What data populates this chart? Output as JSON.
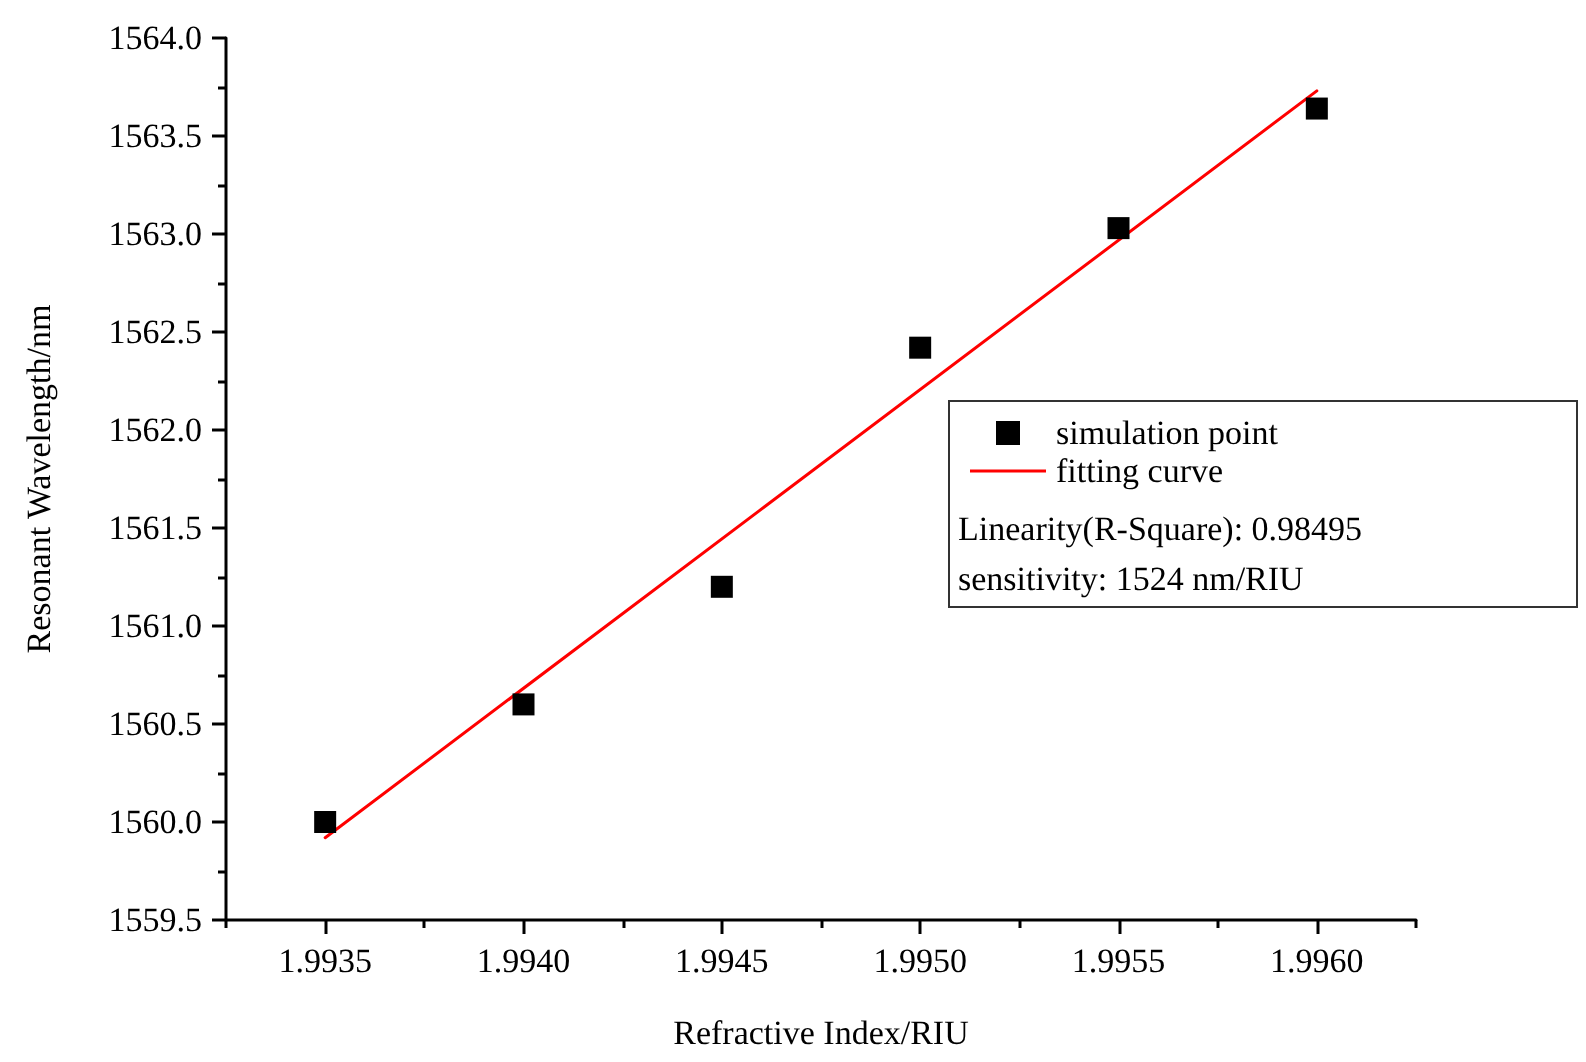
{
  "chart_data": {
    "type": "scatter",
    "xlabel": "Refractive Index/RIU",
    "ylabel": "Resonant Wavelength/nm",
    "series": [
      {
        "name": "simulation point",
        "color": "#000000",
        "marker": "square",
        "x": [
          1.9935,
          1.994,
          1.9945,
          1.995,
          1.9955,
          1.996
        ],
        "values": [
          1560.0,
          1560.6,
          1561.2,
          1562.42,
          1563.03,
          1563.64
        ]
      },
      {
        "name": "fitting curve",
        "type": "line",
        "color": "#ff0000",
        "marker": "none",
        "line_style": "solid",
        "x": [
          1.9935,
          1.996
        ],
        "values": [
          1559.92,
          1563.73
        ]
      }
    ],
    "xlim": [
      1.99325,
      1.99625
    ],
    "xticks": [
      {
        "value": 1.99325,
        "label": null
      },
      1.9935,
      {
        "value": 1.99375,
        "label": null
      },
      {
        "value": 1.994,
        "label": "1.9940"
      },
      {
        "value": 1.99425,
        "label": null
      },
      1.9945,
      {
        "value": 1.99475,
        "label": null
      },
      {
        "value": 1.995,
        "label": "1.9950"
      },
      {
        "value": 1.99525,
        "label": null
      },
      1.9955,
      {
        "value": 1.99575,
        "label": null
      },
      {
        "value": 1.996,
        "label": "1.9960"
      },
      {
        "value": 1.99625,
        "label": null
      }
    ],
    "ylim": [
      1559.5,
      1564.0
    ],
    "yticks": [
      {
        "value": 1559.5,
        "label": "1559.5"
      },
      {
        "value": 1559.75,
        "label": null
      },
      {
        "value": 1560.0,
        "label": "1560.0"
      },
      {
        "value": 1560.25,
        "label": null
      },
      {
        "value": 1560.5,
        "label": "1560.5"
      },
      {
        "value": 1560.75,
        "label": null
      },
      {
        "value": 1561.0,
        "label": "1561.0"
      },
      {
        "value": 1561.25,
        "label": null
      },
      {
        "value": 1561.5,
        "label": "1561.5"
      },
      {
        "value": 1561.75,
        "label": null
      },
      {
        "value": 1562.0,
        "label": "1562.0"
      },
      {
        "value": 1562.25,
        "label": null
      },
      {
        "value": 1562.5,
        "label": "1562.5"
      },
      {
        "value": 1562.75,
        "label": null
      },
      {
        "value": 1563.0,
        "label": "1563.0"
      },
      {
        "value": 1563.25,
        "label": null
      },
      {
        "value": 1563.5,
        "label": "1563.5"
      },
      {
        "value": 1563.75,
        "label": null
      },
      {
        "value": 1564.0,
        "label": "1564.0"
      }
    ],
    "grid": false,
    "legend": "right",
    "annotations": [
      "Linearity(R-Square): 0.98495",
      "sensitivity: 1524 nm/RIU"
    ]
  }
}
